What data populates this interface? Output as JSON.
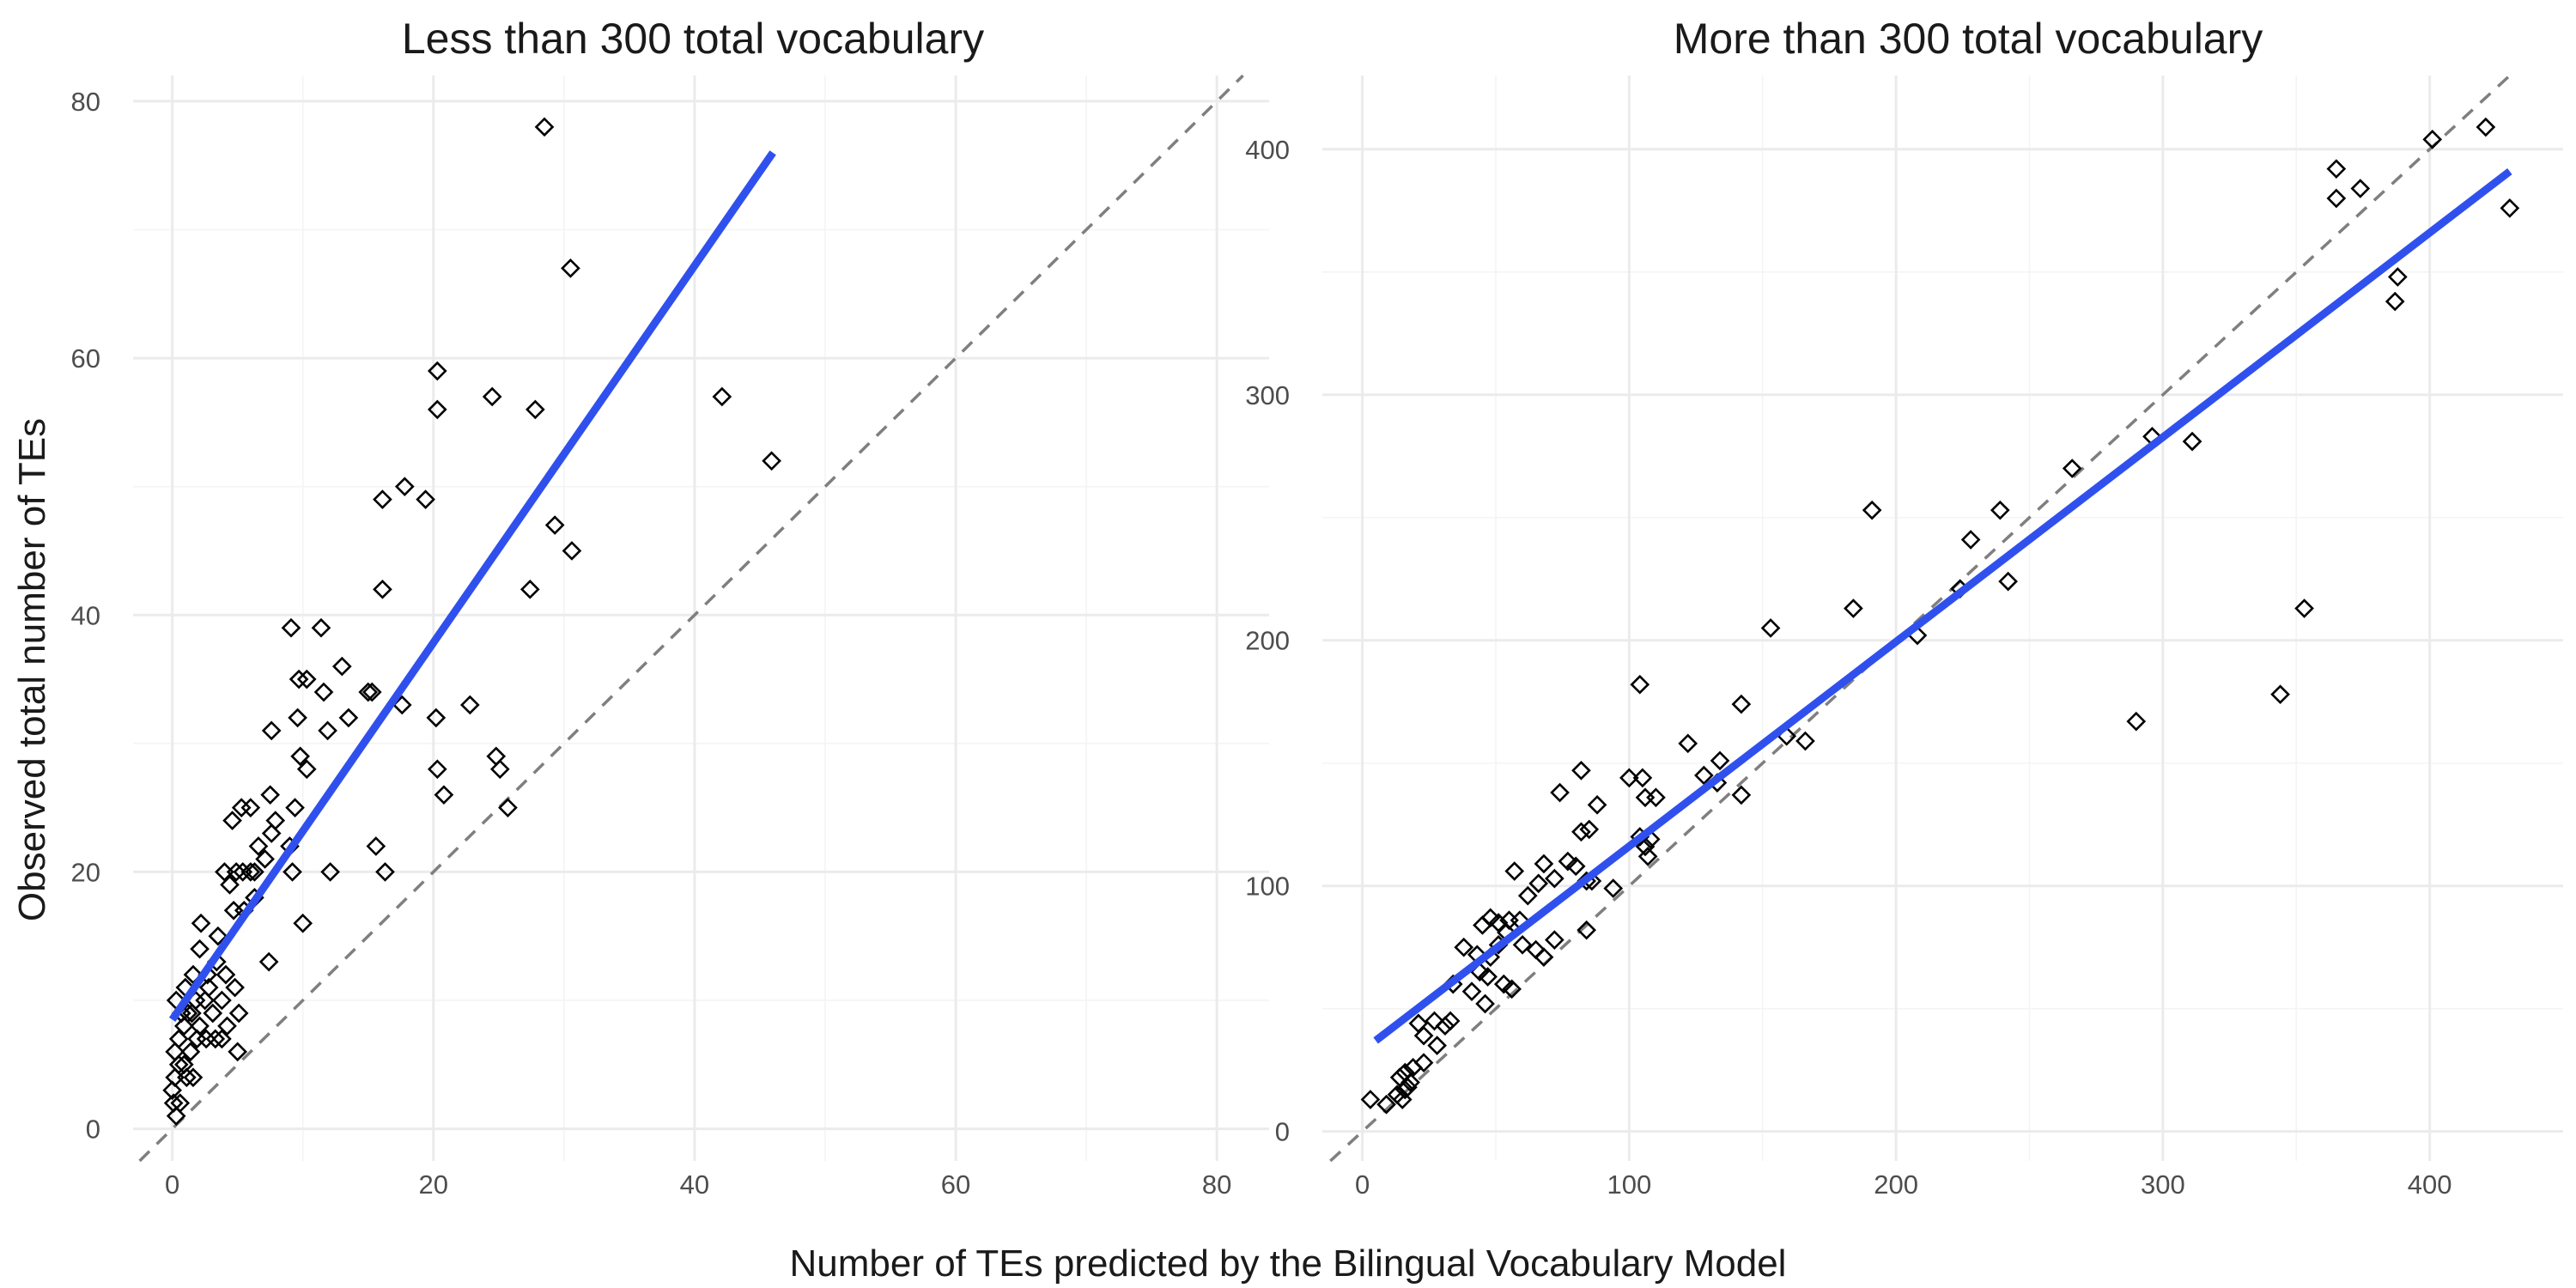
{
  "figure": {
    "xlabel": "Number of TEs predicted by the Bilingual Vocabulary Model",
    "ylabel": "Observed total number of TEs",
    "colors": {
      "points": "#000000",
      "fit_line": "#3050ee",
      "reference_line": "#7f7f7f",
      "grid": "#ebebeb"
    }
  },
  "chart_data": [
    {
      "type": "scatter",
      "title": "Less than 300 total vocabulary",
      "xlim": [
        -3,
        84
      ],
      "ylim": [
        -2.5,
        82
      ],
      "xticks": [
        0,
        20,
        40,
        60,
        80
      ],
      "yticks": [
        0,
        20,
        40,
        60,
        80
      ],
      "grid": true,
      "marker": "diamond-open",
      "reference_line": {
        "style": "dashed",
        "slope": 1,
        "intercept": 0
      },
      "fit_line": {
        "x": [
          0,
          46
        ],
        "y": [
          8.5,
          76
        ]
      },
      "points": [
        [
          28.5,
          78
        ],
        [
          30.5,
          67
        ],
        [
          20.3,
          59
        ],
        [
          20.3,
          56
        ],
        [
          24.5,
          57
        ],
        [
          27.8,
          56
        ],
        [
          42.1,
          57
        ],
        [
          45.9,
          52
        ],
        [
          16.1,
          49
        ],
        [
          17.8,
          50
        ],
        [
          19.4,
          49
        ],
        [
          29.3,
          47
        ],
        [
          30.6,
          45
        ],
        [
          16.1,
          42
        ],
        [
          27.4,
          42
        ],
        [
          9.1,
          39
        ],
        [
          11.4,
          39
        ],
        [
          9.7,
          35
        ],
        [
          10.3,
          35
        ],
        [
          11.6,
          34
        ],
        [
          13.0,
          36
        ],
        [
          15.0,
          34
        ],
        [
          15.3,
          34
        ],
        [
          9.6,
          32
        ],
        [
          11.9,
          31
        ],
        [
          13.5,
          32
        ],
        [
          17.6,
          33
        ],
        [
          20.2,
          32
        ],
        [
          22.8,
          33
        ],
        [
          7.6,
          31
        ],
        [
          9.8,
          29
        ],
        [
          10.3,
          28
        ],
        [
          20.3,
          28
        ],
        [
          20.8,
          26
        ],
        [
          24.8,
          29
        ],
        [
          25.1,
          28
        ],
        [
          25.7,
          25
        ],
        [
          5.3,
          25
        ],
        [
          6.0,
          25
        ],
        [
          7.5,
          26
        ],
        [
          7.9,
          24
        ],
        [
          9.4,
          25
        ],
        [
          4.6,
          24
        ],
        [
          6.6,
          22
        ],
        [
          7.1,
          21
        ],
        [
          7.6,
          23
        ],
        [
          4.0,
          20
        ],
        [
          4.4,
          19
        ],
        [
          4.9,
          20
        ],
        [
          5.4,
          20
        ],
        [
          6.0,
          20
        ],
        [
          6.3,
          20
        ],
        [
          4.7,
          17
        ],
        [
          5.5,
          17
        ],
        [
          6.3,
          18
        ],
        [
          9.0,
          22
        ],
        [
          9.2,
          20
        ],
        [
          12.1,
          20
        ],
        [
          15.6,
          22
        ],
        [
          16.3,
          20
        ],
        [
          10.0,
          16
        ],
        [
          7.4,
          13
        ],
        [
          2.2,
          16
        ],
        [
          2.1,
          14
        ],
        [
          3.5,
          15
        ],
        [
          2.7,
          12
        ],
        [
          3.4,
          13
        ],
        [
          3.8,
          10
        ],
        [
          4.1,
          12
        ],
        [
          4.8,
          11
        ],
        [
          5.1,
          9
        ],
        [
          4.2,
          8
        ],
        [
          5.0,
          6
        ],
        [
          3.1,
          9
        ],
        [
          3.3,
          7
        ],
        [
          3.8,
          7
        ],
        [
          2.8,
          11
        ],
        [
          1.0,
          11
        ],
        [
          1.6,
          12
        ],
        [
          1.5,
          9
        ],
        [
          1.8,
          10
        ],
        [
          2.1,
          8
        ],
        [
          2.5,
          10
        ],
        [
          2.6,
          7
        ],
        [
          1.9,
          7
        ],
        [
          0.3,
          10
        ],
        [
          0.7,
          9
        ],
        [
          0.9,
          8
        ],
        [
          1.2,
          9
        ],
        [
          0.5,
          7
        ],
        [
          1.4,
          6
        ],
        [
          0.9,
          5
        ],
        [
          1.1,
          4
        ],
        [
          1.6,
          4
        ],
        [
          0.2,
          6
        ],
        [
          0.5,
          5
        ],
        [
          0.2,
          4
        ],
        [
          0.0,
          3
        ],
        [
          0.1,
          2
        ],
        [
          0.3,
          1
        ],
        [
          0.6,
          2
        ]
      ]
    },
    {
      "type": "scatter",
      "title": "More than 300 total vocabulary",
      "xlim": [
        -15,
        450
      ],
      "ylim": [
        -12,
        430
      ],
      "xticks": [
        0,
        100,
        200,
        300,
        400
      ],
      "yticks": [
        0,
        100,
        200,
        300,
        400
      ],
      "grid": true,
      "marker": "diamond-open",
      "reference_line": {
        "style": "dashed",
        "slope": 1,
        "intercept": 0
      },
      "fit_line": {
        "x": [
          5,
          430
        ],
        "y": [
          37,
          391
        ]
      },
      "points": [
        [
          365,
          392
        ],
        [
          401,
          404
        ],
        [
          421,
          409
        ],
        [
          365,
          380
        ],
        [
          374,
          384
        ],
        [
          430,
          376
        ],
        [
          388,
          348
        ],
        [
          387,
          338
        ],
        [
          296,
          283
        ],
        [
          311,
          281
        ],
        [
          266,
          270
        ],
        [
          239,
          253
        ],
        [
          191,
          253
        ],
        [
          228,
          241
        ],
        [
          224,
          221
        ],
        [
          242,
          224
        ],
        [
          208,
          202
        ],
        [
          184,
          213
        ],
        [
          153,
          205
        ],
        [
          353,
          213
        ],
        [
          344,
          178
        ],
        [
          290,
          167
        ],
        [
          104,
          182
        ],
        [
          142,
          174
        ],
        [
          159,
          161
        ],
        [
          166,
          159
        ],
        [
          122,
          158
        ],
        [
          134,
          151
        ],
        [
          128,
          145
        ],
        [
          100,
          144
        ],
        [
          105,
          144
        ],
        [
          133,
          142
        ],
        [
          142,
          137
        ],
        [
          106,
          136
        ],
        [
          110,
          136
        ],
        [
          74,
          138
        ],
        [
          82,
          147
        ],
        [
          88,
          133
        ],
        [
          82,
          122
        ],
        [
          85,
          123
        ],
        [
          104,
          120
        ],
        [
          107,
          112
        ],
        [
          108,
          119
        ],
        [
          106,
          116
        ],
        [
          94,
          99
        ],
        [
          84,
          102
        ],
        [
          86,
          102
        ],
        [
          80,
          108
        ],
        [
          77,
          110
        ],
        [
          68,
          109
        ],
        [
          72,
          103
        ],
        [
          57,
          106
        ],
        [
          66,
          101
        ],
        [
          62,
          96
        ],
        [
          55,
          86
        ],
        [
          48,
          87
        ],
        [
          51,
          85
        ],
        [
          45,
          84
        ],
        [
          59,
          86
        ],
        [
          54,
          81
        ],
        [
          51,
          76
        ],
        [
          38,
          75
        ],
        [
          43,
          72
        ],
        [
          48,
          71
        ],
        [
          60,
          76
        ],
        [
          65,
          74
        ],
        [
          68,
          71
        ],
        [
          72,
          78
        ],
        [
          84,
          82
        ],
        [
          44,
          65
        ],
        [
          47,
          63
        ],
        [
          53,
          60
        ],
        [
          56,
          58
        ],
        [
          41,
          57
        ],
        [
          34,
          60
        ],
        [
          46,
          52
        ],
        [
          27,
          45
        ],
        [
          33,
          45
        ],
        [
          31,
          43
        ],
        [
          21,
          44
        ],
        [
          23,
          39
        ],
        [
          28,
          35
        ],
        [
          23,
          28
        ],
        [
          19,
          26
        ],
        [
          16,
          24
        ],
        [
          18,
          20
        ],
        [
          14,
          22
        ],
        [
          17,
          18
        ],
        [
          16,
          17
        ],
        [
          13,
          15
        ],
        [
          3,
          13
        ],
        [
          9,
          11
        ],
        [
          15,
          13
        ]
      ]
    }
  ]
}
